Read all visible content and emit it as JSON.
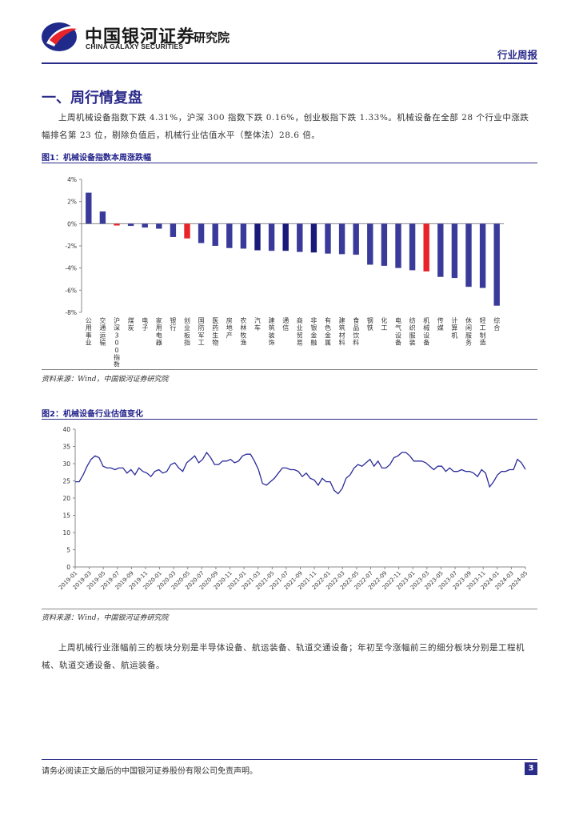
{
  "header": {
    "logo_cn": "中国银河证券",
    "logo_en": "CHINA GALAXY SECURITIES",
    "institute": "研究院",
    "report_type": "行业周报"
  },
  "section": {
    "title": "一、周行情复盘",
    "intro": "上周机械设备指数下跌 4.31%，沪深 300 指数下跌 0.16%，创业板指下跌 1.33%。机械设备在全部 28 个行业中涨跌幅排名第 23 位，剔除负值后，机械行业估值水平（整体法）28.6 倍。",
    "summary": "上周机械行业涨幅前三的板块分别是半导体设备、航运装备、轨道交通设备；年初至今涨幅前三的细分板块分别是工程机械、轨道交通设备、航运装备。"
  },
  "figure1": {
    "title": "图1：机械设备指数本周涨跌幅",
    "source": "资料来源：Wind，中国银河证券研究院"
  },
  "figure2": {
    "title": "图2：机械设备行业估值变化",
    "source": "资料来源：Wind，中国银河证券研究院"
  },
  "footer": {
    "disclaimer": "请务必阅读正文最后的中国银河证券股份有限公司免责声明。",
    "page": "3"
  },
  "chart_data": [
    {
      "type": "bar",
      "title": "图1：机械设备指数本周涨跌幅",
      "categories": [
        "公用事业",
        "交通运输",
        "沪深300指数",
        "煤炭",
        "电子",
        "家用电器",
        "银行",
        "创业板指",
        "国防军工",
        "医药生物",
        "房地产",
        "农林牧渔",
        "汽车",
        "建筑装饰",
        "通信",
        "商业贸易",
        "非银金融",
        "有色金属",
        "建筑材料",
        "食品饮料",
        "钢铁",
        "化工",
        "电气设备",
        "纺织服装",
        "机械设备",
        "传媒",
        "计算机",
        "休闲服务",
        "轻工制造",
        "综合"
      ],
      "values": [
        2.8,
        1.1,
        -0.16,
        -0.2,
        -0.35,
        -0.45,
        -1.2,
        -1.33,
        -1.75,
        -2.0,
        -2.2,
        -2.25,
        -2.4,
        -2.45,
        -2.45,
        -2.55,
        -2.6,
        -2.7,
        -2.75,
        -2.8,
        -3.7,
        -3.8,
        -4.0,
        -4.2,
        -4.31,
        -4.8,
        -4.9,
        -5.7,
        -5.8,
        -7.4
      ],
      "highlight": [
        "沪深300指数",
        "创业板指",
        "机械设备"
      ],
      "colors": {
        "default": "#3a3a9a",
        "highlight": "#e8232a",
        "index": "#1a1a7a"
      },
      "yticks": [
        "4%",
        "2%",
        "0%",
        "-2%",
        "-4%",
        "-6%",
        "-8%"
      ],
      "ylim": [
        -8,
        4
      ]
    },
    {
      "type": "line",
      "title": "图2：机械设备行业估值变化",
      "xticks": [
        "2019-01",
        "2019-03",
        "2019-05",
        "2019-07",
        "2019-09",
        "2019-11",
        "2020-01",
        "2020-03",
        "2020-05",
        "2020-07",
        "2020-09",
        "2020-11",
        "2021-01",
        "2021-03",
        "2021-05",
        "2021-07",
        "2021-09",
        "2021-11",
        "2022-01",
        "2022-03",
        "2022-05",
        "2022-07",
        "2022-09",
        "2022-11",
        "2023-01",
        "2023-03",
        "2023-05",
        "2023-07",
        "2023-09",
        "2023-11",
        "2024-01",
        "2024-03",
        "2024-05"
      ],
      "yticks": [
        "40",
        "35",
        "30",
        "25",
        "20",
        "15",
        "10",
        "5",
        "0"
      ],
      "ylim": [
        0,
        40
      ],
      "color": "#2b2b9a",
      "values": [
        24.5,
        25.0,
        26.5,
        29.5,
        31.0,
        32.5,
        31.5,
        29.5,
        28.5,
        29.0,
        28.0,
        29.0,
        28.5,
        27.5,
        28.0,
        27.0,
        28.5,
        28.0,
        27.0,
        26.5,
        27.5,
        28.5,
        27.0,
        28.0,
        29.5,
        30.5,
        28.5,
        28.0,
        30.0,
        31.5,
        32.0,
        30.5,
        31.0,
        33.5,
        31.5,
        30.0,
        29.5,
        31.0,
        30.5,
        31.5,
        30.0,
        31.0,
        32.0,
        33.0,
        32.5,
        31.0,
        28.0,
        24.5,
        23.5,
        25.0,
        25.5,
        27.5,
        28.5,
        29.0,
        28.0,
        28.5,
        27.5,
        26.5,
        27.0,
        26.0,
        25.0,
        24.0,
        25.5,
        25.0,
        24.5,
        22.5,
        21.0,
        23.0,
        25.5,
        27.0,
        28.5,
        30.0,
        29.0,
        30.5,
        31.0,
        29.5,
        30.5,
        29.0,
        28.5,
        30.0,
        31.5,
        32.5,
        33.0,
        33.5,
        32.0,
        31.0,
        30.5,
        31.0,
        30.0,
        29.5,
        28.0,
        29.5,
        29.0,
        28.0,
        28.5,
        28.0,
        27.5,
        28.5,
        27.5,
        28.0,
        27.0,
        26.5,
        28.0,
        27.5,
        23.0,
        25.0,
        26.5,
        28.0,
        27.5,
        28.5,
        28.0,
        31.5,
        30.0,
        28.6
      ]
    }
  ]
}
